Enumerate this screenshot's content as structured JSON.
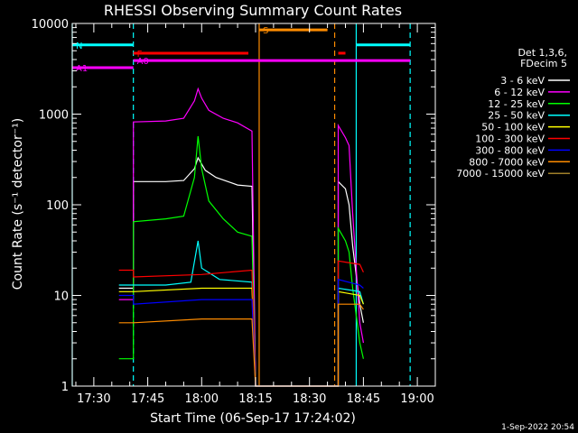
{
  "chart_data": {
    "type": "line",
    "title": "RHESSI Observing Summary Count Rates",
    "xlabel": "Start Time (06-Sep-17 17:24:02)",
    "ylabel": "Count Rate (s⁻¹ detector⁻¹)",
    "y_scale": "log",
    "xlim": [
      "17:24",
      "19:05"
    ],
    "ylim": [
      1,
      10000
    ],
    "x_ticks": [
      "17:30",
      "17:45",
      "18:00",
      "18:15",
      "18:30",
      "18:45",
      "19:00"
    ],
    "y_ticks": [
      {
        "value": 1,
        "label": "1"
      },
      {
        "value": 10,
        "label": "10"
      },
      {
        "value": 100,
        "label": "100"
      },
      {
        "value": 1000,
        "label": "1000"
      },
      {
        "value": 10000,
        "label": "10000"
      }
    ],
    "legend_header": [
      "Det 1,3,6,",
      "FDecim 5"
    ],
    "legend_position": "right",
    "series": [
      {
        "name": "3 - 6 keV",
        "color": "#ffffff",
        "points": [
          [
            "17:37",
            12
          ],
          [
            "17:41",
            12
          ],
          [
            "17:41",
            180
          ],
          [
            "17:50",
            180
          ],
          [
            "17:55",
            185
          ],
          [
            "17:58",
            250
          ],
          [
            "17:59",
            330
          ],
          [
            "18:01",
            240
          ],
          [
            "18:04",
            200
          ],
          [
            "18:10",
            165
          ],
          [
            "18:14",
            160
          ],
          [
            "18:15",
            0.5
          ],
          [
            "18:38",
            0.5
          ],
          [
            "18:38",
            180
          ],
          [
            "18:40",
            150
          ],
          [
            "18:41",
            100
          ],
          [
            "18:42",
            35
          ],
          [
            "18:44",
            8
          ],
          [
            "18:45",
            5
          ]
        ]
      },
      {
        "name": "6 - 12 keV",
        "color": "#ff00ff",
        "points": [
          [
            "17:37",
            9
          ],
          [
            "17:41",
            9
          ],
          [
            "17:41",
            820
          ],
          [
            "17:50",
            840
          ],
          [
            "17:55",
            900
          ],
          [
            "17:58",
            1400
          ],
          [
            "17:59",
            1900
          ],
          [
            "18:00",
            1500
          ],
          [
            "18:02",
            1100
          ],
          [
            "18:06",
            900
          ],
          [
            "18:10",
            800
          ],
          [
            "18:14",
            650
          ],
          [
            "18:15",
            0.5
          ],
          [
            "18:38",
            0.5
          ],
          [
            "18:38",
            750
          ],
          [
            "18:40",
            550
          ],
          [
            "18:41",
            450
          ],
          [
            "18:42",
            80
          ],
          [
            "18:44",
            5
          ],
          [
            "18:45",
            3
          ]
        ]
      },
      {
        "name": "12 - 25 keV",
        "color": "#00ff00",
        "points": [
          [
            "17:37",
            2
          ],
          [
            "17:41",
            2
          ],
          [
            "17:41",
            65
          ],
          [
            "17:50",
            70
          ],
          [
            "17:55",
            75
          ],
          [
            "17:58",
            200
          ],
          [
            "17:59",
            570
          ],
          [
            "18:00",
            250
          ],
          [
            "18:02",
            110
          ],
          [
            "18:06",
            70
          ],
          [
            "18:10",
            50
          ],
          [
            "18:14",
            45
          ],
          [
            "18:15",
            0.5
          ],
          [
            "18:38",
            0.5
          ],
          [
            "18:38",
            55
          ],
          [
            "18:40",
            40
          ],
          [
            "18:41",
            30
          ],
          [
            "18:42",
            12
          ],
          [
            "18:44",
            3
          ],
          [
            "18:45",
            2
          ]
        ]
      },
      {
        "name": "25 - 50 keV",
        "color": "#00ffff",
        "points": [
          [
            "17:37",
            13
          ],
          [
            "17:41",
            13
          ],
          [
            "17:41",
            13
          ],
          [
            "17:50",
            13
          ],
          [
            "17:57",
            14
          ],
          [
            "17:59",
            40
          ],
          [
            "18:00",
            20
          ],
          [
            "18:05",
            15
          ],
          [
            "18:14",
            14
          ],
          [
            "18:15",
            0.5
          ],
          [
            "18:38",
            0.5
          ],
          [
            "18:38",
            12
          ],
          [
            "18:44",
            11
          ],
          [
            "18:45",
            8
          ]
        ]
      },
      {
        "name": "50 - 100 keV",
        "color": "#ffff00",
        "points": [
          [
            "17:37",
            11
          ],
          [
            "17:41",
            11
          ],
          [
            "17:41",
            11
          ],
          [
            "18:00",
            12
          ],
          [
            "18:14",
            12
          ],
          [
            "18:15",
            0.5
          ],
          [
            "18:38",
            0.5
          ],
          [
            "18:38",
            11
          ],
          [
            "18:44",
            10
          ],
          [
            "18:45",
            8
          ]
        ]
      },
      {
        "name": "100 - 300 keV",
        "color": "#ff0000",
        "points": [
          [
            "17:37",
            19
          ],
          [
            "17:41",
            19
          ],
          [
            "17:41",
            16
          ],
          [
            "18:00",
            17
          ],
          [
            "18:14",
            19
          ],
          [
            "18:15",
            0.5
          ],
          [
            "18:38",
            0.5
          ],
          [
            "18:38",
            24
          ],
          [
            "18:44",
            22
          ],
          [
            "18:45",
            18
          ]
        ]
      },
      {
        "name": "300 - 800 keV",
        "color": "#0000ff",
        "points": [
          [
            "17:37",
            10
          ],
          [
            "17:41",
            10
          ],
          [
            "17:41",
            8
          ],
          [
            "18:00",
            9
          ],
          [
            "18:14",
            9
          ],
          [
            "18:15",
            0.5
          ],
          [
            "18:38",
            0.5
          ],
          [
            "18:38",
            15
          ],
          [
            "18:44",
            13
          ],
          [
            "18:45",
            12
          ]
        ]
      },
      {
        "name": "800 - 7000 keV",
        "color": "#ff8c00",
        "points": [
          [
            "17:37",
            5
          ],
          [
            "17:41",
            5
          ],
          [
            "17:41",
            5
          ],
          [
            "18:00",
            5.5
          ],
          [
            "18:14",
            5.5
          ],
          [
            "18:15",
            0.5
          ],
          [
            "18:38",
            0.5
          ],
          [
            "18:38",
            8
          ],
          [
            "18:44",
            8
          ],
          [
            "18:45",
            7
          ]
        ]
      },
      {
        "name": "7000 - 15000 keV",
        "color": "#a0802a",
        "points": []
      }
    ],
    "annotations": {
      "vertical_lines": [
        {
          "time": "17:24",
          "color": "#00ffff",
          "style": "solid"
        },
        {
          "time": "17:41",
          "color": "#00ffff",
          "style": "dashed"
        },
        {
          "time": "18:16",
          "color": "#ff8c00",
          "style": "solid"
        },
        {
          "time": "18:37",
          "color": "#ff8c00",
          "style": "dashed"
        },
        {
          "time": "18:43",
          "color": "#00ffff",
          "style": "solid"
        },
        {
          "time": "18:58",
          "color": "#00ffff",
          "style": "dashed"
        }
      ],
      "bars": [
        {
          "label": "N",
          "color": "#00ffff",
          "start": "17:24",
          "end": "17:41",
          "level": 5800
        },
        {
          "label": "",
          "color": "#00ffff",
          "start": "18:43",
          "end": "18:58",
          "level": 5800
        },
        {
          "label": "F",
          "color": "#ff0000",
          "start": "17:41",
          "end": "18:13",
          "level": 4700
        },
        {
          "label": "",
          "color": "#ff0000",
          "start": "18:38",
          "end": "18:40",
          "level": 4700
        },
        {
          "label": "S",
          "color": "#ff8c00",
          "start": "18:16",
          "end": "18:35",
          "level": 8500
        },
        {
          "label": "A0",
          "color": "#ff00ff",
          "start": "17:41",
          "end": "18:58",
          "level": 3900
        },
        {
          "label": "A1",
          "color": "#ff00ff",
          "start": "17:24",
          "end": "17:41",
          "level": 3250
        }
      ]
    },
    "footer_date": "1-Sep-2022 20:54"
  }
}
